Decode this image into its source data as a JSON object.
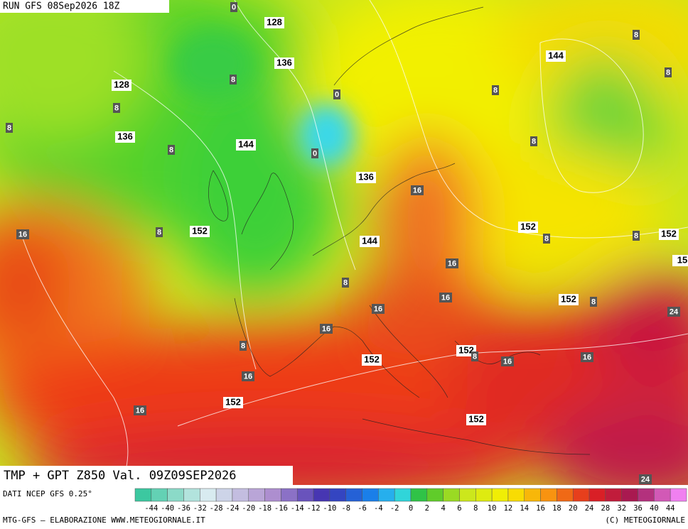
{
  "header": {
    "run": "RUN GFS 08Sep2026 18Z",
    "title": "TMP + GPT Z850 Val. 09Z09SEP2026"
  },
  "footer": {
    "source": "DATI NCEP GFS 0.25°",
    "credit": "MTG-GFS – ELABORAZIONE WWW.METEOGIORNALE.IT",
    "copyright": "(C) METEOGIORNALE"
  },
  "scale": [
    -44,
    -40,
    -36,
    -32,
    -28,
    -24,
    -20,
    -18,
    -16,
    -14,
    -12,
    -10,
    -8,
    -6,
    -4,
    -2,
    0,
    2,
    4,
    6,
    8,
    10,
    12,
    14,
    16,
    18,
    20,
    24,
    28,
    32,
    36,
    40,
    44
  ],
  "map": {
    "height_labels": [
      128,
      136,
      128,
      136,
      144,
      136,
      152,
      144,
      152,
      152,
      144,
      152,
      152,
      152,
      152,
      152,
      15
    ],
    "temp_labels": [
      8,
      8,
      8,
      8,
      8,
      8,
      8,
      8,
      8,
      8,
      8,
      8,
      8,
      8,
      8,
      16,
      16,
      16,
      16,
      16,
      16,
      16,
      16,
      16,
      16,
      24,
      24,
      0,
      0,
      0
    ]
  }
}
